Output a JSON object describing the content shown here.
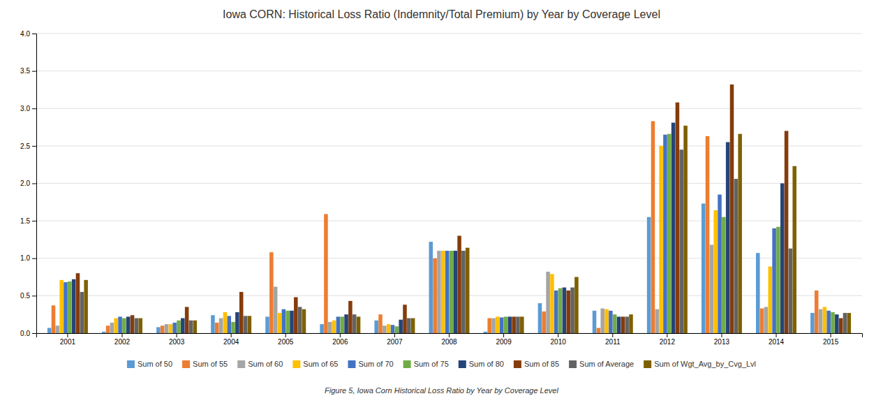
{
  "chart_data": {
    "type": "bar",
    "title": "Iowa CORN: Historical Loss Ratio (Indemnity/Total Premium) by Year by Coverage Level",
    "subtitle": "Figure 5, Iowa Corn Historical Loss Ratio by Year by Coverage Level",
    "categories": [
      "2001",
      "2002",
      "2003",
      "2004",
      "2005",
      "2006",
      "2007",
      "2008",
      "2009",
      "2010",
      "2011",
      "2012",
      "2013",
      "2014",
      "2015"
    ],
    "series": [
      {
        "name": "Sum of 50",
        "color": "#5B9BD5",
        "values": [
          0.07,
          0.02,
          0.08,
          0.24,
          0.22,
          0.12,
          0.17,
          1.22,
          0.02,
          0.4,
          0.3,
          1.55,
          1.73,
          1.07,
          0.27
        ]
      },
      {
        "name": "Sum of 55",
        "color": "#ED7D31",
        "values": [
          0.37,
          0.1,
          0.1,
          0.14,
          1.08,
          1.59,
          0.25,
          1.0,
          0.2,
          0.29,
          0.07,
          2.83,
          2.63,
          0.33,
          0.57
        ]
      },
      {
        "name": "Sum of 60",
        "color": "#A5A5A5",
        "values": [
          0.1,
          0.14,
          0.12,
          0.2,
          0.62,
          0.15,
          0.1,
          1.1,
          0.2,
          0.82,
          0.33,
          0.32,
          1.18,
          0.35,
          0.32
        ]
      },
      {
        "name": "Sum of 65",
        "color": "#FFC000",
        "values": [
          0.71,
          0.2,
          0.12,
          0.28,
          0.27,
          0.17,
          0.12,
          1.1,
          0.22,
          0.79,
          0.32,
          2.5,
          1.64,
          0.89,
          0.35
        ]
      },
      {
        "name": "Sum of 70",
        "color": "#4472C4",
        "values": [
          0.68,
          0.22,
          0.14,
          0.23,
          0.32,
          0.22,
          0.11,
          1.1,
          0.21,
          0.57,
          0.3,
          2.65,
          1.85,
          1.4,
          0.3
        ]
      },
      {
        "name": "Sum of 75",
        "color": "#70AD47",
        "values": [
          0.69,
          0.2,
          0.17,
          0.15,
          0.3,
          0.22,
          0.09,
          1.1,
          0.22,
          0.6,
          0.25,
          2.66,
          1.55,
          1.42,
          0.28
        ]
      },
      {
        "name": "Sum of 80",
        "color": "#264478",
        "values": [
          0.72,
          0.22,
          0.2,
          0.28,
          0.3,
          0.25,
          0.18,
          1.1,
          0.22,
          0.61,
          0.22,
          2.81,
          2.55,
          2.0,
          0.25
        ]
      },
      {
        "name": "Sum of 85",
        "color": "#843C0C",
        "values": [
          0.8,
          0.24,
          0.35,
          0.55,
          0.48,
          0.43,
          0.38,
          1.3,
          0.22,
          0.57,
          0.22,
          3.08,
          3.32,
          2.7,
          0.2
        ]
      },
      {
        "name": "Sum of Average",
        "color": "#636363",
        "values": [
          0.55,
          0.2,
          0.17,
          0.23,
          0.35,
          0.25,
          0.2,
          1.1,
          0.22,
          0.61,
          0.22,
          2.45,
          2.06,
          1.13,
          0.27
        ]
      },
      {
        "name": "Sum of Wgt_Avg_by_Cvg_Lvl",
        "color": "#7F6000",
        "values": [
          0.71,
          0.2,
          0.17,
          0.23,
          0.32,
          0.22,
          0.2,
          1.14,
          0.22,
          0.75,
          0.25,
          2.77,
          2.66,
          2.23,
          0.27
        ]
      }
    ],
    "ylim": [
      0.0,
      4.0
    ],
    "yticks": [
      {
        "value": 0.0,
        "label": "0.0"
      },
      0.5,
      {
        "value": 1.0,
        "label": "1.0"
      },
      1.5,
      {
        "value": 2.0,
        "label": "2.0"
      },
      2.5,
      {
        "value": 3.0,
        "label": "3.0"
      },
      3.5,
      {
        "value": 4.0,
        "label": "4.0"
      }
    ],
    "grid": true,
    "legend": "bottom"
  }
}
